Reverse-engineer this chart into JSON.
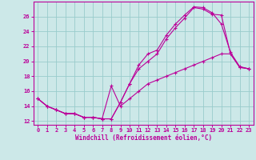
{
  "xlabel": "Windchill (Refroidissement éolien,°C)",
  "background_color": "#cce8e8",
  "grid_color": "#99cccc",
  "line_color": "#bb0099",
  "xlim": [
    -0.5,
    23.5
  ],
  "ylim": [
    11.5,
    28.0
  ],
  "xticks": [
    0,
    1,
    2,
    3,
    4,
    5,
    6,
    7,
    8,
    9,
    10,
    11,
    12,
    13,
    14,
    15,
    16,
    17,
    18,
    19,
    20,
    21,
    22,
    23
  ],
  "yticks": [
    12,
    14,
    16,
    18,
    20,
    22,
    24,
    26
  ],
  "line1_x": [
    0,
    1,
    2,
    3,
    4,
    5,
    6,
    7,
    8,
    9,
    10,
    11,
    12,
    13,
    14,
    15,
    16,
    17,
    18,
    19,
    20,
    21,
    22,
    23
  ],
  "line1_y": [
    15.0,
    14.0,
    13.5,
    13.0,
    13.0,
    12.5,
    12.5,
    12.3,
    12.3,
    14.5,
    17.0,
    19.5,
    21.0,
    21.5,
    23.5,
    25.0,
    26.2,
    27.3,
    27.2,
    26.5,
    25.0,
    21.2,
    19.3,
    19.0
  ],
  "line2_x": [
    0,
    1,
    2,
    3,
    4,
    5,
    6,
    7,
    8,
    9,
    10,
    11,
    12,
    13,
    14,
    15,
    16,
    17,
    18,
    19,
    20,
    21,
    22,
    23
  ],
  "line2_y": [
    15.0,
    14.0,
    13.5,
    13.0,
    13.0,
    12.5,
    12.5,
    12.3,
    12.3,
    14.5,
    17.0,
    19.0,
    20.0,
    21.0,
    23.0,
    24.5,
    25.8,
    27.2,
    27.0,
    26.3,
    26.2,
    21.0,
    19.2,
    19.0
  ],
  "line3_x": [
    0,
    1,
    2,
    3,
    4,
    5,
    6,
    7,
    8,
    9,
    10,
    11,
    12,
    13,
    14,
    15,
    16,
    17,
    18,
    19,
    20,
    21,
    22,
    23
  ],
  "line3_y": [
    15.0,
    14.0,
    13.5,
    13.0,
    13.0,
    12.5,
    12.5,
    12.3,
    16.7,
    14.0,
    15.0,
    16.0,
    17.0,
    17.5,
    18.0,
    18.5,
    19.0,
    19.5,
    20.0,
    20.5,
    21.0,
    21.0,
    19.2,
    19.0
  ]
}
